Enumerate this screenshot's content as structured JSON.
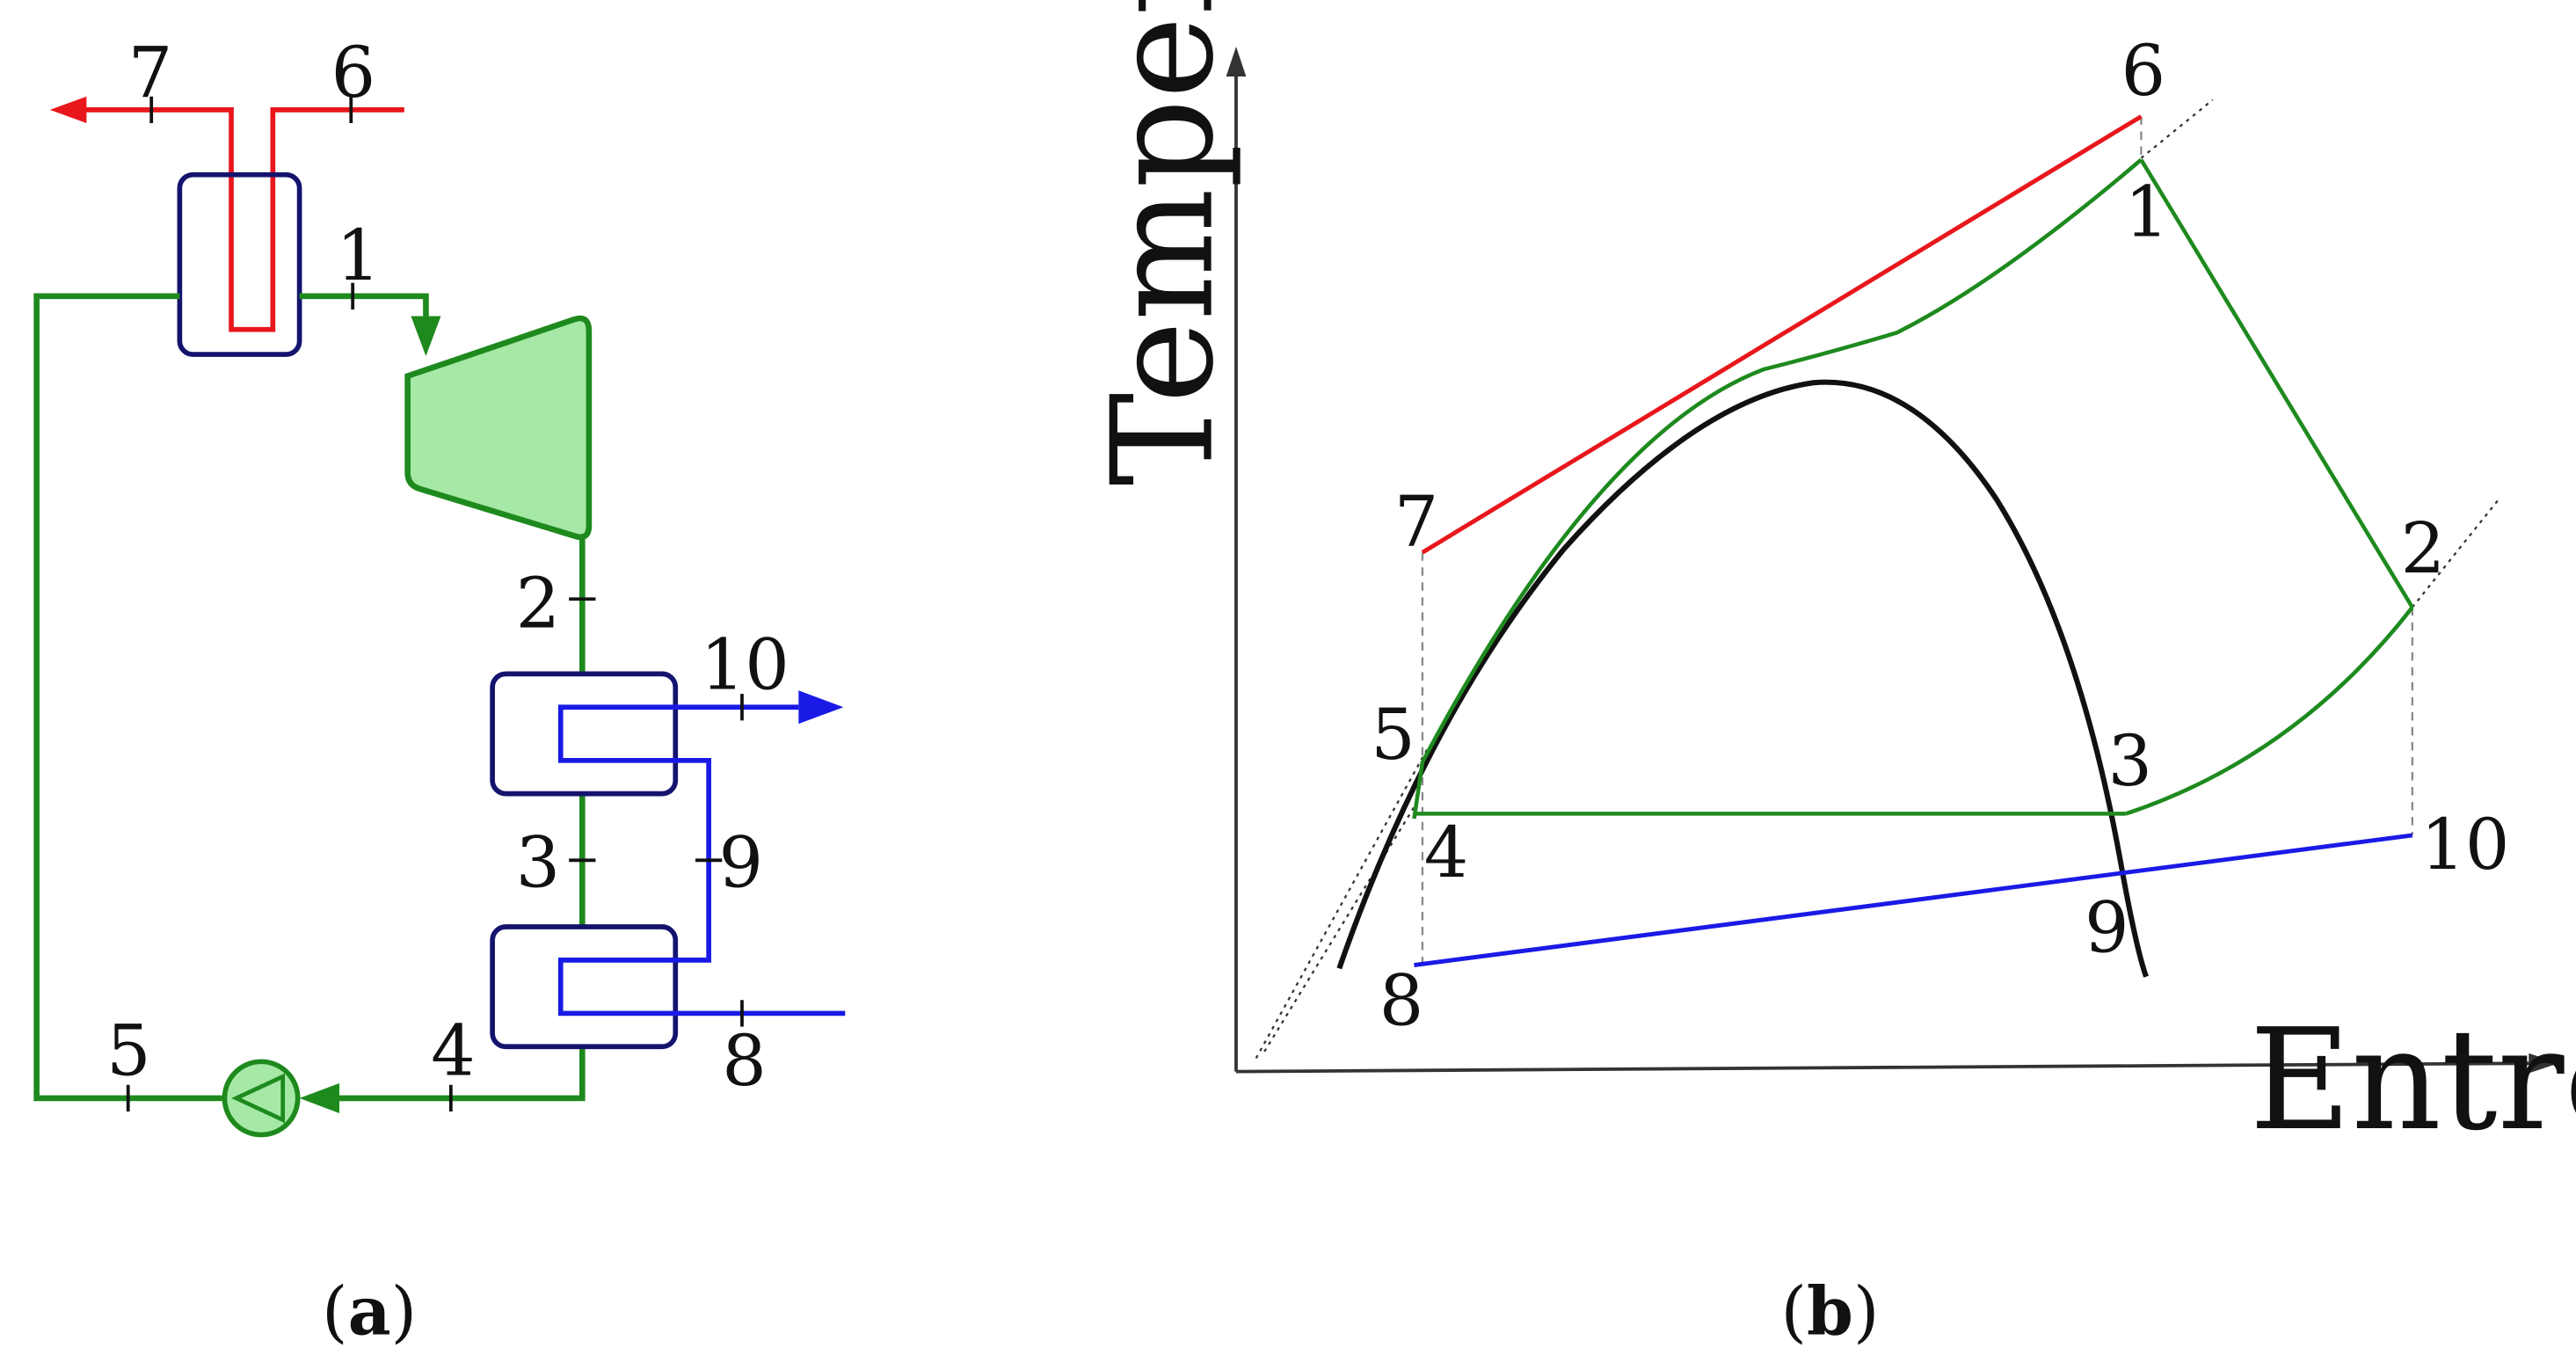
{
  "colors": {
    "hot_stream": "#e8171c",
    "working_fluid": "#1e8a1e",
    "working_fluid_fill": "#a6e8a6",
    "cold_stream": "#1a1ae6",
    "heat_exchanger": "#14146e",
    "saturation_dome": "#111111",
    "guide": "#888888"
  },
  "icons": {
    "hx_top": "heat-exchanger-icon",
    "turbine": "turbine-icon",
    "hx_condenser_upper": "heat-exchanger-icon",
    "hx_condenser_lower": "heat-exchanger-icon",
    "pump": "pump-icon"
  },
  "panel_a": {
    "caption_open": "(",
    "caption_letter": "a",
    "caption_close": ")",
    "points": {
      "p1": "1",
      "p2": "2",
      "p3": "3",
      "p4": "4",
      "p5": "5",
      "p6": "6",
      "p7": "7",
      "p8": "8",
      "p9": "9",
      "p10": "10"
    }
  },
  "panel_b": {
    "caption_open": "(",
    "caption_letter": "b",
    "caption_close": ")",
    "y_axis_label": "Temperature",
    "x_axis_label": "Entropy",
    "points": {
      "p1": "1",
      "p2": "2",
      "p3": "3",
      "p4": "4",
      "p5": "5",
      "p6": "6",
      "p7": "7",
      "p8": "8",
      "p9": "9",
      "p10": "10"
    }
  }
}
